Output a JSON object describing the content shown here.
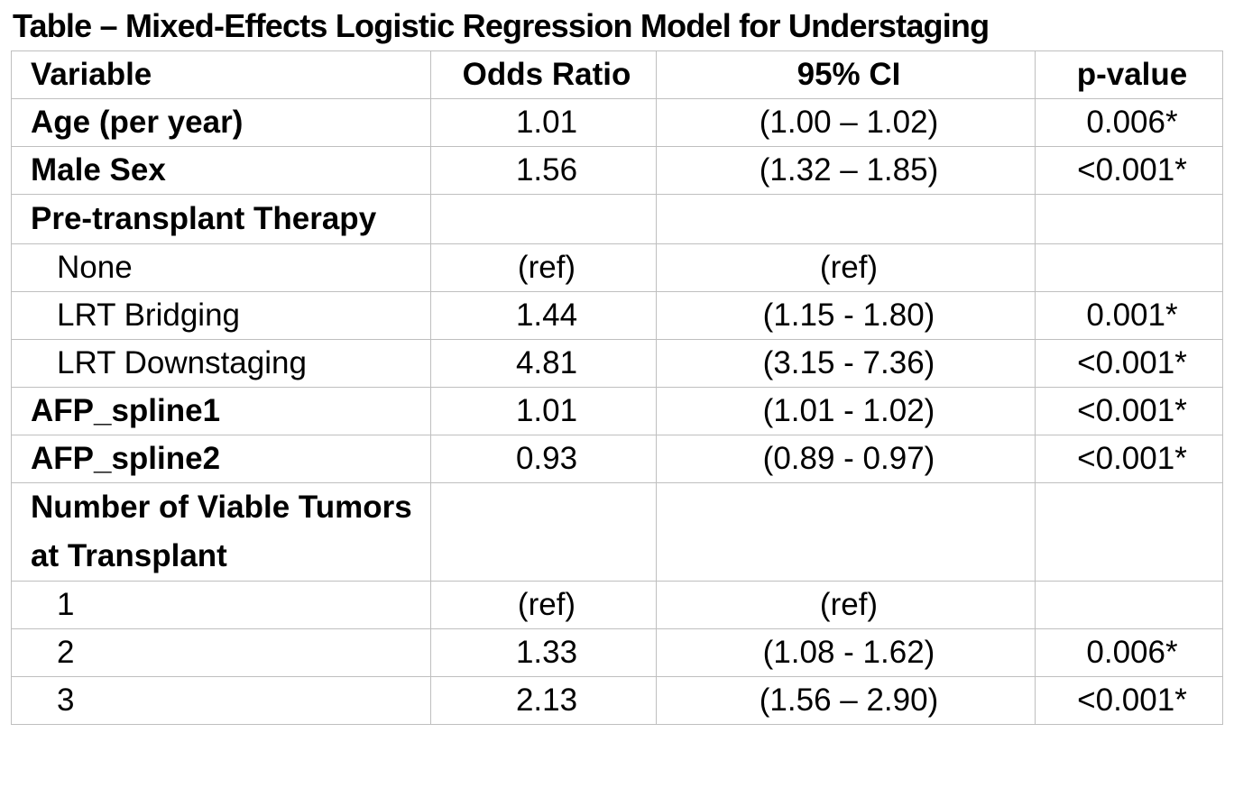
{
  "title": "Table – Mixed-Effects Logistic Regression Model for Understaging",
  "columns": {
    "variable": "Variable",
    "odds_ratio": "Odds Ratio",
    "ci": "95% CI",
    "p_value": "p-value"
  },
  "rows": [
    {
      "variable": "Age (per year)",
      "style": "bold",
      "odds_ratio": "1.01",
      "ci": "(1.00 – 1.02)",
      "p_value": "0.006*"
    },
    {
      "variable": "Male Sex",
      "style": "bold",
      "odds_ratio": "1.56",
      "ci": "(1.32 – 1.85)",
      "p_value": "<0.001*"
    },
    {
      "variable": "Pre-transplant Therapy",
      "style": "bold",
      "odds_ratio": "",
      "ci": "",
      "p_value": ""
    },
    {
      "variable": "None",
      "style": "indent",
      "odds_ratio": "(ref)",
      "ci": "(ref)",
      "p_value": ""
    },
    {
      "variable": "LRT Bridging",
      "style": "indent",
      "odds_ratio": "1.44",
      "ci": "(1.15 - 1.80)",
      "p_value": "0.001*"
    },
    {
      "variable": "LRT Downstaging",
      "style": "indent",
      "odds_ratio": "4.81",
      "ci": "(3.15 - 7.36)",
      "p_value": "<0.001*"
    },
    {
      "variable": "AFP_spline1",
      "style": "bold",
      "odds_ratio": "1.01",
      "ci": "(1.01 - 1.02)",
      "p_value": "<0.001*"
    },
    {
      "variable": "AFP_spline2",
      "style": "bold",
      "odds_ratio": "0.93",
      "ci": "(0.89 - 0.97)",
      "p_value": "<0.001*"
    },
    {
      "variable": "Number of Viable Tumors at Transplant",
      "style": "bold",
      "odds_ratio": "",
      "ci": "",
      "p_value": ""
    },
    {
      "variable": "1",
      "style": "indent",
      "odds_ratio": "(ref)",
      "ci": "(ref)",
      "p_value": ""
    },
    {
      "variable": "2",
      "style": "indent",
      "odds_ratio": "1.33",
      "ci": "(1.08 - 1.62)",
      "p_value": "0.006*"
    },
    {
      "variable": "3",
      "style": "indent",
      "odds_ratio": "2.13",
      "ci": "(1.56 – 2.90)",
      "p_value": "<0.001*"
    }
  ]
}
